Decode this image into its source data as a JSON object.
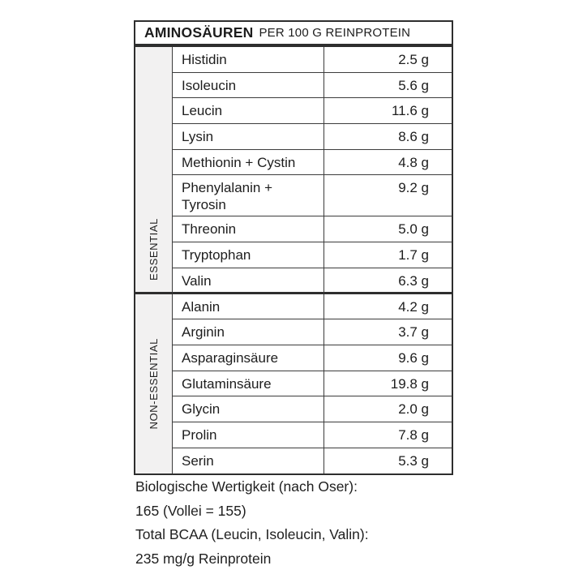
{
  "header": {
    "title": "AMINOSÄUREN",
    "subtitle": "PER 100 G REINPROTEIN"
  },
  "table": {
    "groups": [
      {
        "label": "ESSENTIAL",
        "rows": [
          {
            "name": "Histidin",
            "value": "2.5 g"
          },
          {
            "name": "Isoleucin",
            "value": "5.6 g"
          },
          {
            "name": "Leucin",
            "value": "11.6 g"
          },
          {
            "name": "Lysin",
            "value": "8.6 g"
          },
          {
            "name": "Methionin + Cystin",
            "value": "4.8 g"
          },
          {
            "name": "Phenylalanin + Tyrosin",
            "value": "9.2 g"
          },
          {
            "name": "Threonin",
            "value": "5.0 g"
          },
          {
            "name": "Tryptophan",
            "value": "1.7 g"
          },
          {
            "name": "Valin",
            "value": "6.3 g"
          }
        ]
      },
      {
        "label": "NON-ESSENTIAL",
        "rows": [
          {
            "name": "Alanin",
            "value": "4.2 g"
          },
          {
            "name": "Arginin",
            "value": "3.7 g"
          },
          {
            "name": "Asparaginsäure",
            "value": "9.6 g"
          },
          {
            "name": "Glutaminsäure",
            "value": "19.8 g"
          },
          {
            "name": "Glycin",
            "value": "2.0 g"
          },
          {
            "name": "Prolin",
            "value": "7.8 g"
          },
          {
            "name": "Serin",
            "value": "5.3 g"
          }
        ]
      }
    ]
  },
  "footer": {
    "lines": [
      "Biologische Wertigkeit (nach Oser):",
      "165 (Vollei = 155)",
      "Total BCAA (Leucin, Isoleucin, Valin):",
      "235 mg/g Reinprotein"
    ]
  },
  "colors": {
    "text": "#1d1d1d",
    "border_outer": "#2e2e2e",
    "border_inner": "#3c3c3c",
    "group_label_bg": "#f2f1f1",
    "background": "#ffffff"
  }
}
